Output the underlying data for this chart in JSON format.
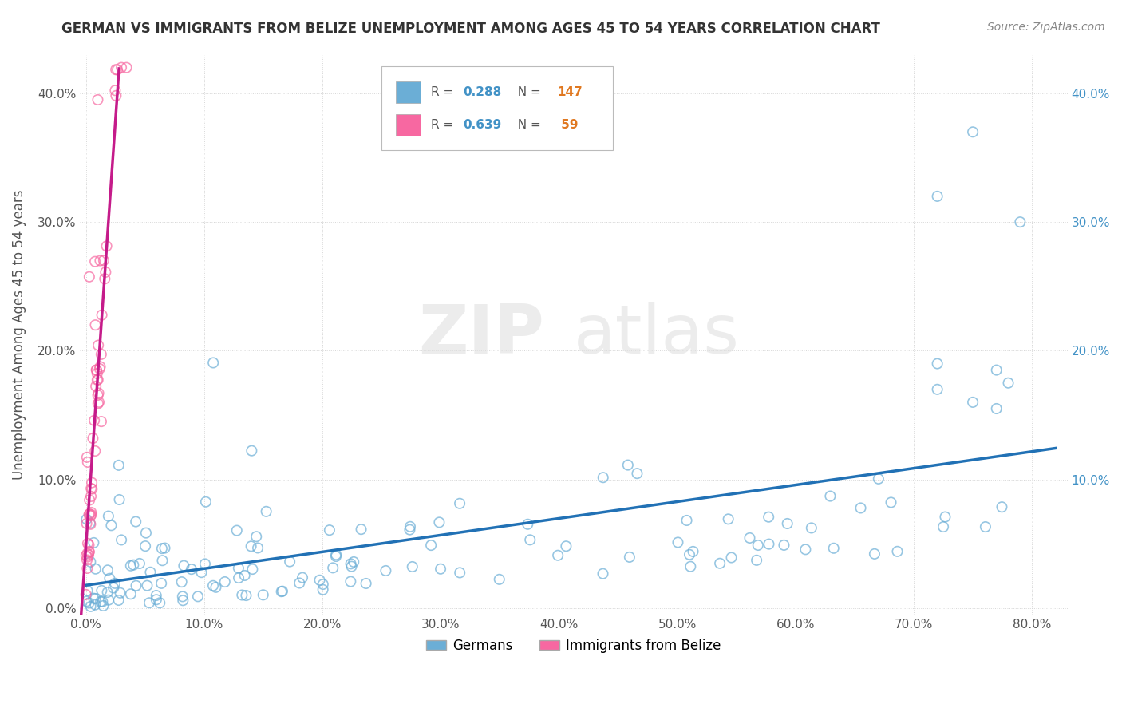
{
  "title": "GERMAN VS IMMIGRANTS FROM BELIZE UNEMPLOYMENT AMONG AGES 45 TO 54 YEARS CORRELATION CHART",
  "source": "Source: ZipAtlas.com",
  "xlim": [
    -0.005,
    0.83
  ],
  "ylim": [
    -0.005,
    0.43
  ],
  "german_color": "#6baed6",
  "belize_color": "#f768a1",
  "german_line_color": "#2171b5",
  "belize_line_color": "#c51b8a",
  "legend_r_german": "R = 0.288",
  "legend_n_german": "N = 147",
  "legend_r_belize": "R = 0.639",
  "legend_n_belize": "N =  59",
  "ylabel": "Unemployment Among Ages 45 to 54 years",
  "legend_label_german": "Germans",
  "legend_label_belize": "Immigrants from Belize",
  "watermark_zip": "ZIP",
  "watermark_atlas": "atlas",
  "background_color": "#ffffff",
  "grid_color": "#cccccc",
  "title_color": "#333333",
  "source_color": "#888888",
  "tick_color": "#555555",
  "right_tick_color": "#4292c6",
  "legend_r_color": "#555555",
  "legend_rv_color": "#4292c6",
  "legend_n_color": "#555555",
  "legend_nv_color": "#e07820",
  "seed": 99
}
